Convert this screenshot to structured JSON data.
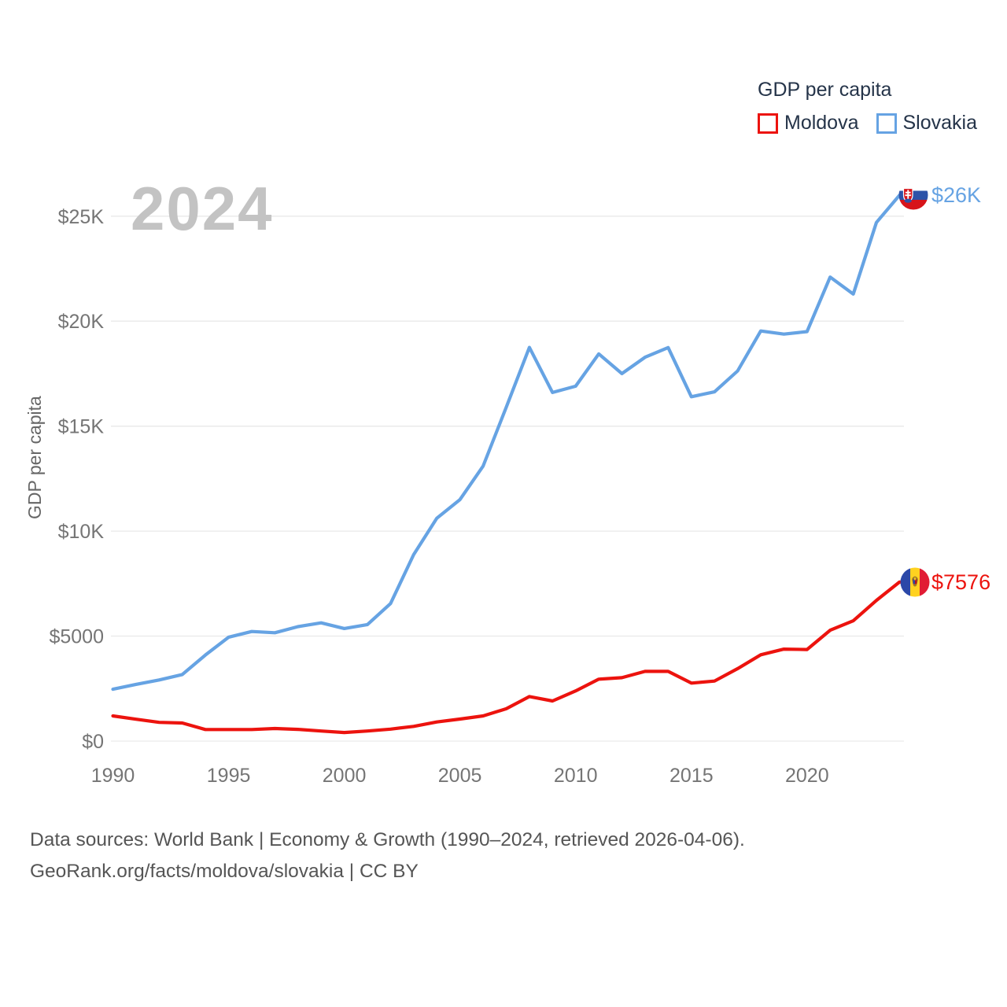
{
  "watermark": "2024",
  "legend": {
    "title": "GDP per capita",
    "items": [
      {
        "label": "Moldova",
        "color": "#ec130e"
      },
      {
        "label": "Slovakia",
        "color": "#66a3e3"
      }
    ]
  },
  "y_axis": {
    "title": "GDP per capita",
    "tick_labels": [
      "$0",
      "$5000",
      "$10K",
      "$15K",
      "$20K",
      "$25K"
    ],
    "tick_values": [
      0,
      5000,
      10000,
      15000,
      20000,
      25000
    ]
  },
  "x_axis": {
    "tick_labels": [
      "1990",
      "1995",
      "2000",
      "2005",
      "2010",
      "2015",
      "2020"
    ],
    "tick_values": [
      1990,
      1995,
      2000,
      2005,
      2010,
      2015,
      2020
    ]
  },
  "end_labels": {
    "slovakia": "$26K",
    "moldova": "$7576"
  },
  "flags": {
    "slovakia": "slovakia-flag-icon",
    "moldova": "moldova-flag-icon"
  },
  "footer": {
    "line1": "Data sources: World Bank | Economy & Growth (1990–2024, retrieved 2026-04-06).",
    "line2": "GeoRank.org/facts/moldova/slovakia | CC BY"
  },
  "colors": {
    "moldova_line": "#ec130e",
    "slovakia_line": "#66a3e3",
    "grid": "#e9e9e9",
    "axis_text": "#757575",
    "legend_text": "#253449",
    "watermark": "#c3c3c3",
    "footer_text": "#555555"
  },
  "chart_data": {
    "type": "line",
    "title": "GDP per capita",
    "xlabel": "",
    "ylabel": "GDP per capita",
    "xlim": [
      1990,
      2024
    ],
    "ylim": [
      0,
      26500
    ],
    "grid": "horizontal",
    "legend_position": "top-right",
    "x": [
      1990,
      1991,
      1992,
      1993,
      1994,
      1995,
      1996,
      1997,
      1998,
      1999,
      2000,
      2001,
      2002,
      2003,
      2004,
      2005,
      2006,
      2007,
      2008,
      2009,
      2010,
      2011,
      2012,
      2013,
      2014,
      2015,
      2016,
      2017,
      2018,
      2019,
      2020,
      2021,
      2022,
      2023,
      2024
    ],
    "series": [
      {
        "id": "moldova",
        "name": "Moldova",
        "color": "#ec130e",
        "end_label": "$7576",
        "values": [
          1200,
          1040,
          890,
          860,
          550,
          550,
          550,
          600,
          560,
          480,
          410,
          480,
          570,
          700,
          910,
          1050,
          1200,
          1540,
          2120,
          1910,
          2390,
          2950,
          3020,
          3320,
          3320,
          2760,
          2860,
          3450,
          4110,
          4380,
          4360,
          5280,
          5730,
          6700,
          7576
        ]
      },
      {
        "id": "slovakia",
        "name": "Slovakia",
        "color": "#66a3e3",
        "end_label": "$26K",
        "values": [
          2470,
          2700,
          2910,
          3170,
          4100,
          4950,
          5220,
          5160,
          5450,
          5630,
          5360,
          5550,
          6550,
          8880,
          10610,
          11500,
          13100,
          15900,
          18750,
          16600,
          16900,
          18440,
          17500,
          18280,
          18740,
          16400,
          16630,
          17630,
          19530,
          19380,
          19500,
          22100,
          21290,
          24700,
          26000
        ]
      }
    ]
  }
}
